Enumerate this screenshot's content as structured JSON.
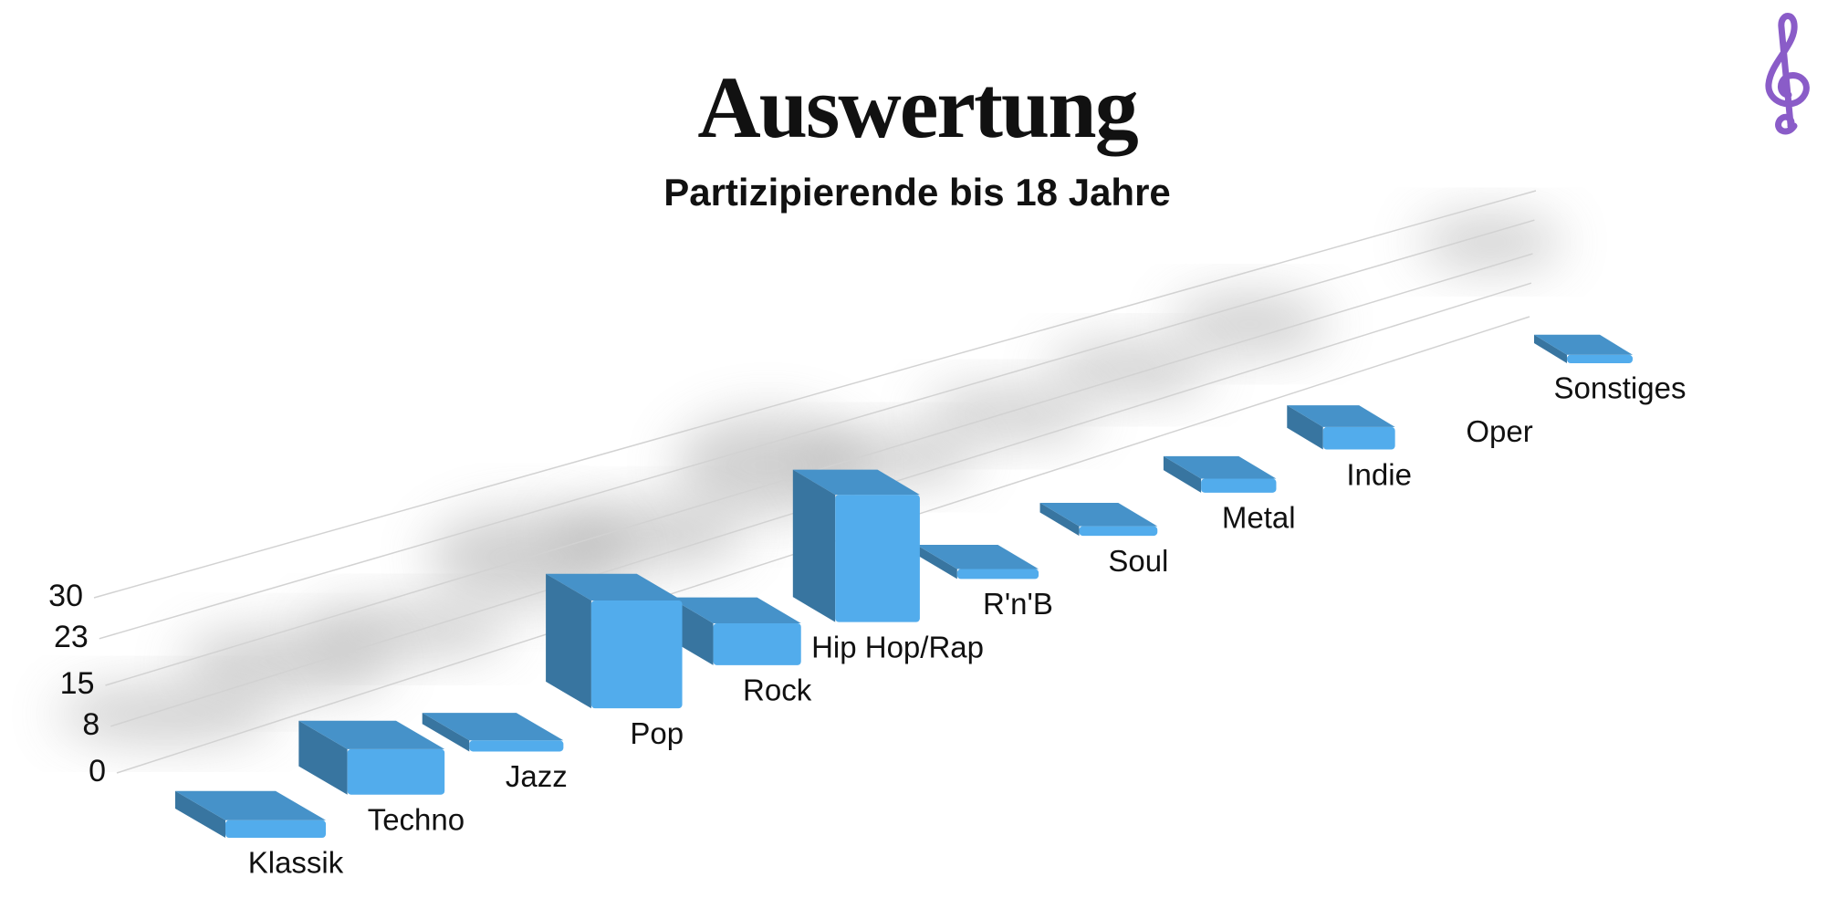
{
  "chart_data": {
    "type": "bar3d",
    "title": "Auswertung",
    "subtitle": "Partizipierende bis 18 Jahre",
    "categories": [
      "Klassik",
      "Techno",
      "Jazz",
      "Pop",
      "Rock",
      "Hip Hop/Rap",
      "R'n'B",
      "Soul",
      "Metal",
      "Indie",
      "Oper",
      "Sonstiges"
    ],
    "values": [
      3,
      8,
      2,
      20,
      8,
      25,
      2,
      2,
      3,
      5,
      0,
      2
    ],
    "color": "#52acec",
    "ylim": [
      0,
      30
    ],
    "yticks": [
      0,
      8,
      15,
      23,
      30
    ],
    "grid": true
  }
}
